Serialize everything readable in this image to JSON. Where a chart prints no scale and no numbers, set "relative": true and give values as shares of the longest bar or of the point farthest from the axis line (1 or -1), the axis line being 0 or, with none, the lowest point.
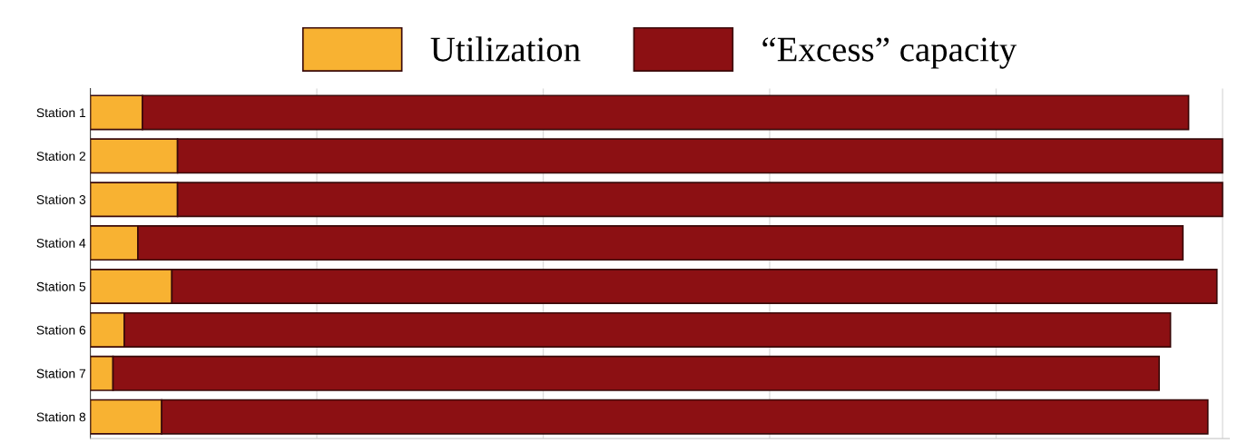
{
  "chart_data": {
    "type": "bar",
    "orientation": "horizontal",
    "stacked": true,
    "relative": true,
    "grid": "x",
    "legend": "top",
    "categories": [
      "Station 1",
      "Station 2",
      "Station 3",
      "Station 4",
      "Station 5",
      "Station 6",
      "Station 7",
      "Station 8"
    ],
    "series": [
      {
        "name": "Utilization",
        "color": "#f8b232",
        "values": [
          0.046,
          0.077,
          0.077,
          0.042,
          0.072,
          0.03,
          0.02,
          0.063
        ]
      },
      {
        "name": "“Excess” capacity",
        "color": "#8c1013",
        "values": [
          0.924,
          0.923,
          0.923,
          0.923,
          0.923,
          0.924,
          0.924,
          0.924
        ]
      }
    ]
  }
}
